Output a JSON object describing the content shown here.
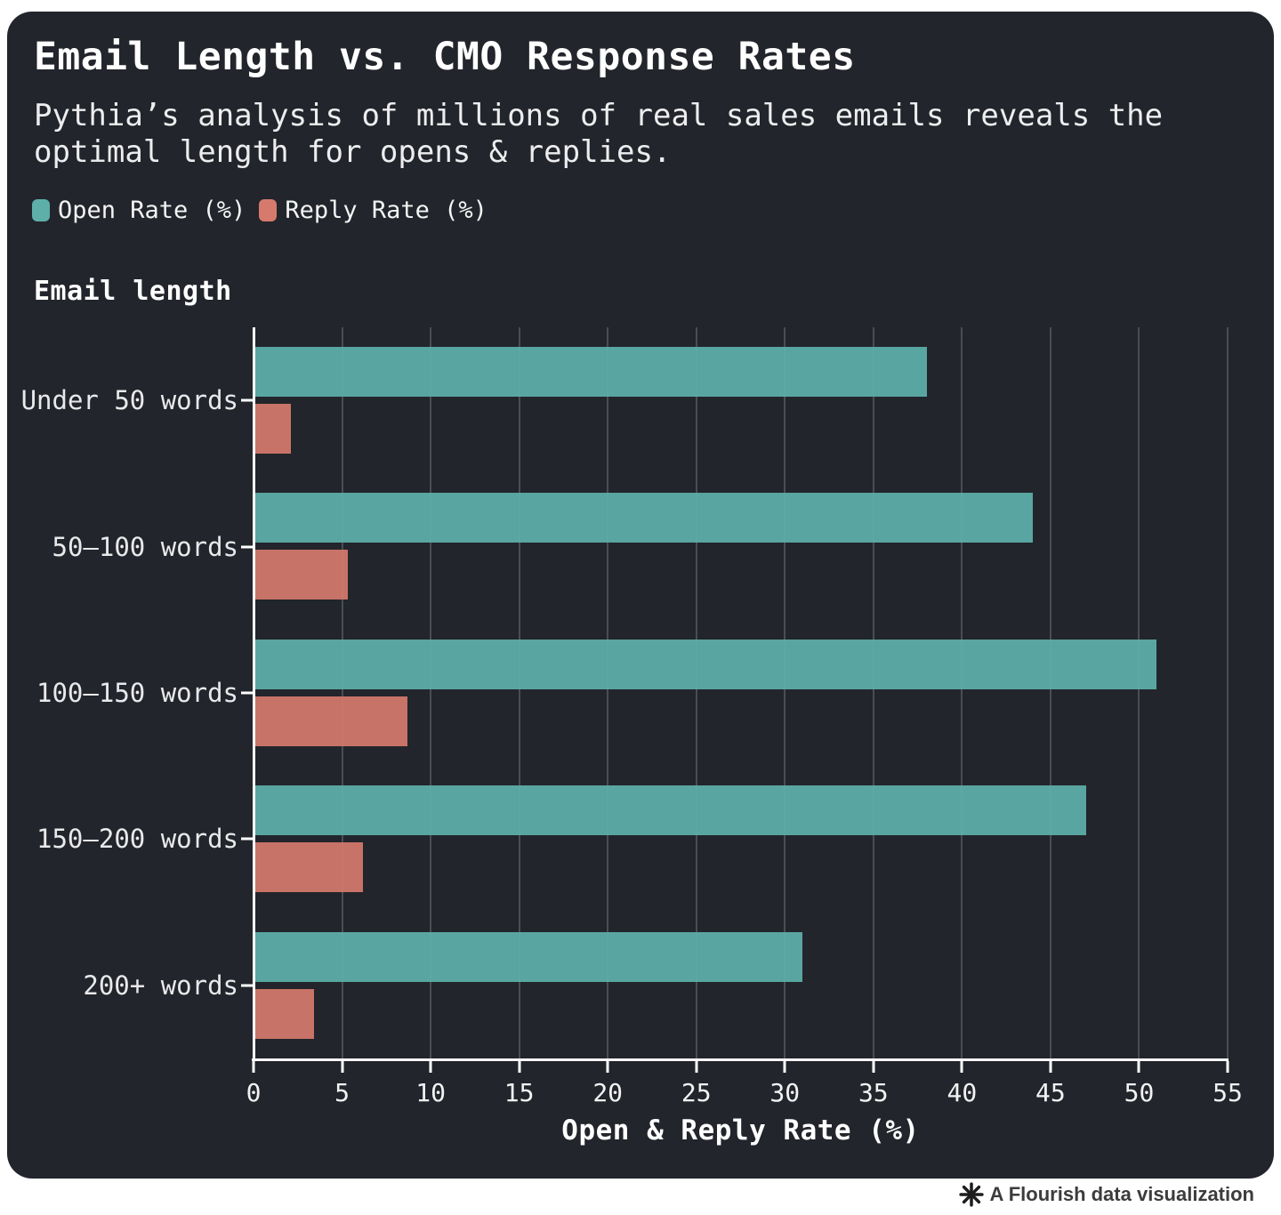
{
  "header": {
    "title": "Email Length vs. CMO Response Rates",
    "subtitle": "Pythia’s analysis of millions of real sales emails reveals the optimal length for opens & replies."
  },
  "chart_data": {
    "type": "bar",
    "orientation": "horizontal",
    "title": "Email Length vs. CMO Response Rates",
    "subtitle": "Pythia’s analysis of millions of real sales emails reveals the optimal length for opens & replies.",
    "y_axis_title": "Email length",
    "xlabel": "Open & Reply Rate (%)",
    "categories": [
      "Under 50 words",
      "50–100 words",
      "100–150 words",
      "150–200 words",
      "200+ words"
    ],
    "series": [
      {
        "name": "Open Rate (%)",
        "color": "#5EAFAA",
        "values": [
          38,
          44,
          51,
          47,
          31
        ]
      },
      {
        "name": "Reply Rate (%)",
        "color": "#D57A6C",
        "values": [
          2.1,
          5.3,
          8.7,
          6.2,
          3.4
        ]
      }
    ],
    "xlim": [
      0,
      55
    ],
    "x_ticks": [
      0,
      5,
      10,
      15,
      20,
      25,
      30,
      35,
      40,
      45,
      50,
      55
    ],
    "grid": true,
    "legend_position": "top"
  },
  "footer": {
    "credit": "A Flourish data visualization"
  },
  "colors": {
    "page_bg": "#FFFFFF",
    "card_bg": "#22252B",
    "grid": "#494D54",
    "axis": "#FFFFFF",
    "open_bar": "#5EAFAA",
    "reply_bar": "#D57A6C",
    "credit_text": "#3C3C3C"
  }
}
